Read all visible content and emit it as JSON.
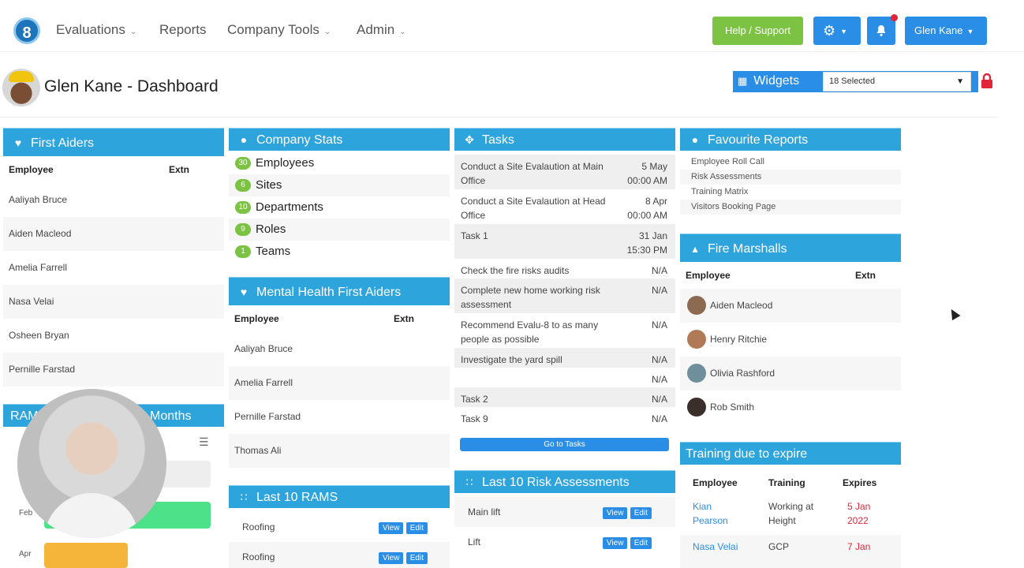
{
  "nav": {
    "logo": "8",
    "items": [
      {
        "label": "Evaluations",
        "dropdown": true
      },
      {
        "label": "Reports",
        "dropdown": false
      },
      {
        "label": "Company Tools",
        "dropdown": true
      },
      {
        "label": "Admin",
        "dropdown": true
      }
    ],
    "help_label": "Help / Support",
    "user_label": "Glen Kane"
  },
  "header": {
    "title": "Glen Kane - Dashboard",
    "widgets_label": "Widgets",
    "widgets_selected": "18 Selected"
  },
  "first_aiders": {
    "title": "First Aiders",
    "col_employee": "Employee",
    "col_extn": "Extn",
    "rows": [
      "Aaliyah Bruce",
      "Aiden Macleod",
      "Amelia Farrell",
      "Nasa Velai",
      "Osheen Bryan",
      "Pernille Farstad"
    ]
  },
  "rams_chart": {
    "title_left": "RAM",
    "title_right": "Months",
    "labels": [
      "Feb",
      "Apr"
    ]
  },
  "company_stats": {
    "title": "Company Stats",
    "rows": [
      {
        "count": "30",
        "label": "Employees"
      },
      {
        "count": "6",
        "label": "Sites"
      },
      {
        "count": "10",
        "label": "Departments"
      },
      {
        "count": "9",
        "label": "Roles"
      },
      {
        "count": "1",
        "label": "Teams"
      }
    ]
  },
  "mental_health": {
    "title": "Mental Health First Aiders",
    "col_employee": "Employee",
    "col_extn": "Extn",
    "rows": [
      "Aaliyah Bruce",
      "Amelia Farrell",
      "Pernille Farstad",
      "Thomas Ali"
    ]
  },
  "last_rams": {
    "title": "Last 10 RAMS",
    "view_label": "View",
    "edit_label": "Edit",
    "rows": [
      "Roofing",
      "Roofing"
    ]
  },
  "tasks": {
    "title": "Tasks",
    "goto_label": "Go to Tasks",
    "rows": [
      {
        "name": "Conduct a Site Evalaution at Main Office",
        "due1": "5 May",
        "due2": "00:00 AM"
      },
      {
        "name": "Conduct a Site Evalaution at Head Office",
        "due1": "8 Apr",
        "due2": "00:00 AM"
      },
      {
        "name": "Task 1",
        "due1": "31 Jan",
        "due2": "15:30 PM"
      },
      {
        "name": "Check the fire risks audits",
        "due1": "N/A",
        "due2": ""
      },
      {
        "name": "Complete new home working risk assessment",
        "due1": "N/A",
        "due2": ""
      },
      {
        "name": "Recommend Evalu-8 to as many people as possible",
        "due1": "N/A",
        "due2": ""
      },
      {
        "name": "Investigate the yard spill",
        "due1": "N/A",
        "due2": ""
      },
      {
        "name": "",
        "due1": "N/A",
        "due2": ""
      },
      {
        "name": "Task 2",
        "due1": "N/A",
        "due2": ""
      },
      {
        "name": "Task 9",
        "due1": "N/A",
        "due2": ""
      }
    ]
  },
  "risk_assessments": {
    "title": "Last 10 Risk Assessments",
    "view_label": "View",
    "edit_label": "Edit",
    "rows": [
      "Main lift",
      "Lift"
    ]
  },
  "favourite_reports": {
    "title": "Favourite Reports",
    "rows": [
      "Employee Roll Call",
      "Risk Assessments",
      "Training Matrix",
      "Visitors Booking Page"
    ]
  },
  "fire_marshalls": {
    "title": "Fire Marshalls",
    "col_employee": "Employee",
    "col_extn": "Extn",
    "rows": [
      "Aiden Macleod",
      "Henry Ritchie",
      "Olivia Rashford",
      "Rob Smith"
    ]
  },
  "training": {
    "title": "Training due to expire",
    "col_employee": "Employee",
    "col_training": "Training",
    "col_expires": "Expires",
    "rows": [
      {
        "employee1": "Kian",
        "employee2": "Pearson",
        "training1": "Working at",
        "training2": "Height",
        "expires1": "5 Jan",
        "expires2": "2022"
      },
      {
        "employee1": "Nasa Velai",
        "employee2": "",
        "training1": "GCP",
        "training2": "",
        "expires1": "7 Jan",
        "expires2": ""
      }
    ]
  },
  "colors": {
    "panel_header": "#2ea4dc",
    "button_blue": "#2b8ee6",
    "help_green": "#7cc243",
    "alert_red": "#e0243a"
  }
}
